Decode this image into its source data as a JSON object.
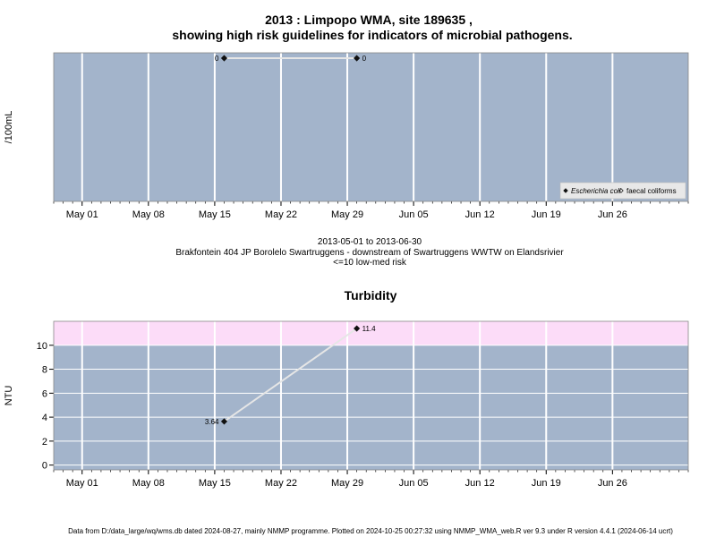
{
  "titles": {
    "line1": "2013 : Limpopo WMA, site 189635 ,",
    "line2": "showing high risk guidelines for indicators of microbial pathogens."
  },
  "subtitle": {
    "range": "2013-05-01 to 2013-06-30",
    "site": "Brakfontein 404 JP Borolelo Swartruggens - downstream of Swartruggens WWTW on Elandsrivier",
    "risk": "<=10 low-med risk"
  },
  "footer": "Data from D:/data_large/wq/wms.db dated 2024-08-27, mainly NMMP programme. Plotted on 2024-10-25 00:27:32 using NMMP_WMA_web.R ver 9.3 under R version 4.4.1 (2024-06-14 ucrt)",
  "colors": {
    "panel_bg": "#a3b4cb",
    "high_risk_band": "#fcdcf8",
    "grid": "#ffffff",
    "line": "#e6e6e6",
    "point": "#111111"
  },
  "chart_data": [
    {
      "type": "line",
      "title": "",
      "ylabel": "/100mL",
      "x_ticks": [
        "May 01",
        "May 08",
        "May 15",
        "May 22",
        "May 29",
        "Jun 05",
        "Jun 12",
        "Jun 19",
        "Jun 26"
      ],
      "xlim": [
        "2013-04-28",
        "2013-07-04"
      ],
      "ylim": [
        0,
        1
      ],
      "y_ticks": [],
      "series": [
        {
          "name": "Escherichia coli",
          "marker": "filled-diamond",
          "points": [
            {
              "x": "2013-05-16",
              "y": 0,
              "label": "0"
            },
            {
              "x": "2013-05-30",
              "y": 0,
              "label": "0"
            }
          ]
        },
        {
          "name": "faecal coliforms",
          "marker": "open-diamond",
          "points": []
        }
      ],
      "legend": {
        "position": "bottom-right",
        "items": [
          "Escherichia coli",
          "faecal coliforms"
        ]
      }
    },
    {
      "type": "line",
      "title": "Turbidity",
      "ylabel": "NTU",
      "x_ticks": [
        "May 01",
        "May 08",
        "May 15",
        "May 22",
        "May 29",
        "Jun 05",
        "Jun 12",
        "Jun 19",
        "Jun 26"
      ],
      "xlim": [
        "2013-04-28",
        "2013-07-04"
      ],
      "ylim": [
        -0.4,
        12
      ],
      "y_ticks": [
        0,
        2,
        4,
        6,
        8,
        10
      ],
      "high_risk_threshold": 10,
      "series": [
        {
          "name": "",
          "marker": "filled-diamond",
          "points": [
            {
              "x": "2013-05-16",
              "y": 3.64,
              "label": "3.64"
            },
            {
              "x": "2013-05-30",
              "y": 11.4,
              "label": "11.4"
            }
          ]
        }
      ]
    }
  ]
}
